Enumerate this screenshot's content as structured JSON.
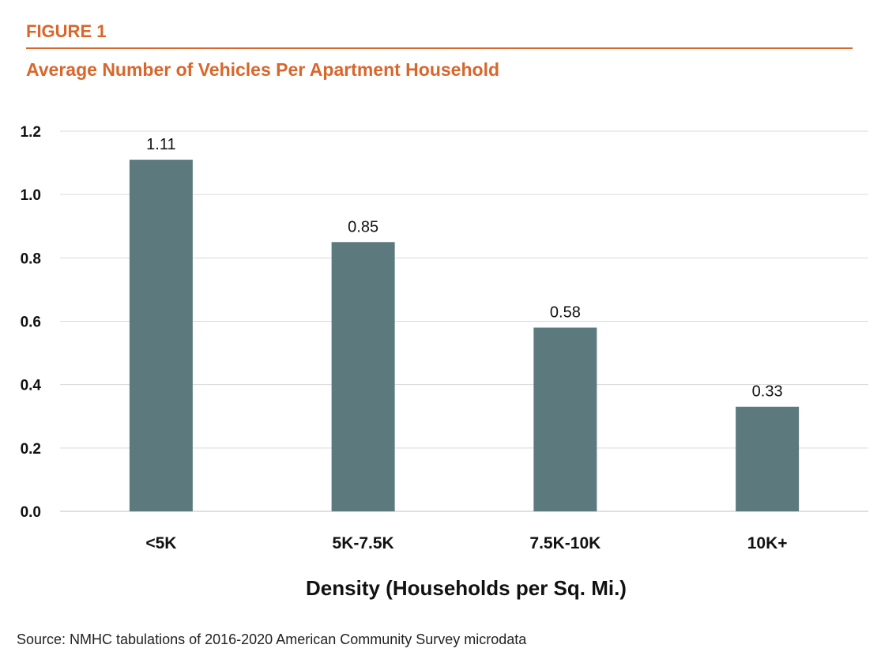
{
  "figure_label": "FIGURE 1",
  "source": "Source: NMHC tabulations of 2016-2020 American Community Survey microdata",
  "colors": {
    "accent": "#d9662b",
    "bar": "#5c7a7e",
    "grid": "#d9d9d9"
  },
  "chart_data": {
    "type": "bar",
    "title": "Average Number of Vehicles Per Apartment Household",
    "xlabel": "Density (Households per Sq. Mi.)",
    "ylabel": "",
    "categories": [
      "<5K",
      "5K-7.5K",
      "7.5K-10K",
      "10K+"
    ],
    "values": [
      1.11,
      0.85,
      0.58,
      0.33
    ],
    "data_labels": [
      "1.11",
      "0.85",
      "0.58",
      "0.33"
    ],
    "ylim": [
      0,
      1.2
    ],
    "yticks": [
      "0.0",
      "0.2",
      "0.4",
      "0.6",
      "0.8",
      "1.0",
      "1.2"
    ],
    "grid": true,
    "legend": "none"
  }
}
